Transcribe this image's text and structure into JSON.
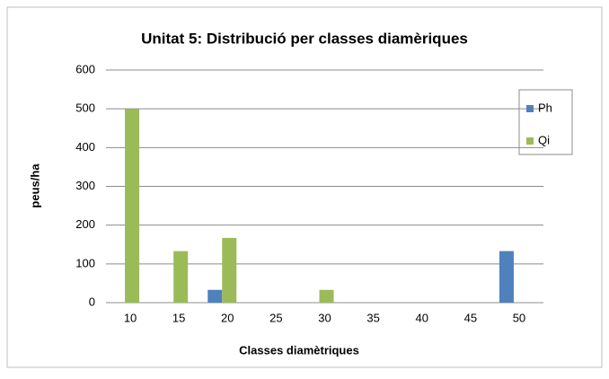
{
  "chart_data": {
    "type": "bar",
    "title": "Unitat 5: Distribució per classes diamèriques",
    "x_label": "Classes diamètriques",
    "y_label": "peus/ha",
    "categories": [
      "10",
      "15",
      "20",
      "25",
      "30",
      "35",
      "40",
      "45",
      "50"
    ],
    "series": [
      {
        "name": "Ph",
        "color": "#4f81bd",
        "values": [
          0,
          0,
          33,
          0,
          0,
          0,
          0,
          0,
          133
        ]
      },
      {
        "name": "Qi",
        "color": "#9bbb59",
        "values": [
          500,
          133,
          167,
          0,
          33,
          0,
          0,
          0,
          0
        ]
      }
    ],
    "ylim": [
      0,
      600
    ],
    "yticks": [
      0,
      100,
      200,
      300,
      400,
      500,
      600
    ],
    "grid": true,
    "legend": "right"
  }
}
